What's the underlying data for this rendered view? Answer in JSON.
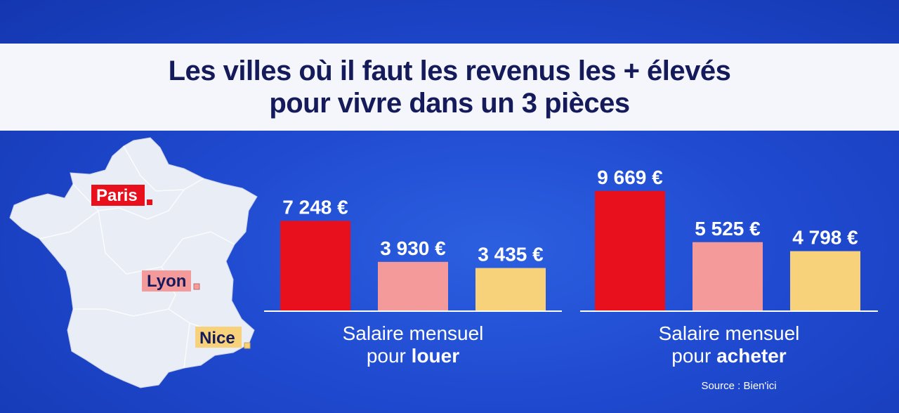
{
  "title": {
    "line1": "Les villes où il faut les revenus les + élevés",
    "line2": "pour vivre dans un 3 pièces"
  },
  "map": {
    "cities": [
      {
        "name": "Paris",
        "color": "#e8101c",
        "text_color": "#ffffff"
      },
      {
        "name": "Lyon",
        "color": "#f49a9a",
        "text_color": "#141a5a"
      },
      {
        "name": "Nice",
        "color": "#f7d27a",
        "text_color": "#141a5a"
      }
    ]
  },
  "source": "Source : Bien'ici",
  "chart_data": [
    {
      "type": "bar",
      "categories": [
        "Paris",
        "Lyon",
        "Nice"
      ],
      "values": [
        7248,
        3930,
        3435
      ],
      "value_labels": [
        "7 248 €",
        "3 930 €",
        "3 435 €"
      ],
      "colors": [
        "#e8101c",
        "#f49a9a",
        "#f7d27a"
      ],
      "xlabel_line1": "Salaire mensuel",
      "xlabel_line2_prefix": "pour ",
      "xlabel_line2_bold": "louer",
      "ylim": [
        0,
        10000
      ],
      "grid": false
    },
    {
      "type": "bar",
      "categories": [
        "Paris",
        "Lyon",
        "Nice"
      ],
      "values": [
        9669,
        5525,
        4798
      ],
      "value_labels": [
        "9 669 €",
        "5 525 €",
        "4 798 €"
      ],
      "colors": [
        "#e8101c",
        "#f49a9a",
        "#f7d27a"
      ],
      "xlabel_line1": "Salaire mensuel",
      "xlabel_line2_prefix": "pour ",
      "xlabel_line2_bold": "acheter",
      "ylim": [
        0,
        10000
      ],
      "grid": false
    }
  ]
}
